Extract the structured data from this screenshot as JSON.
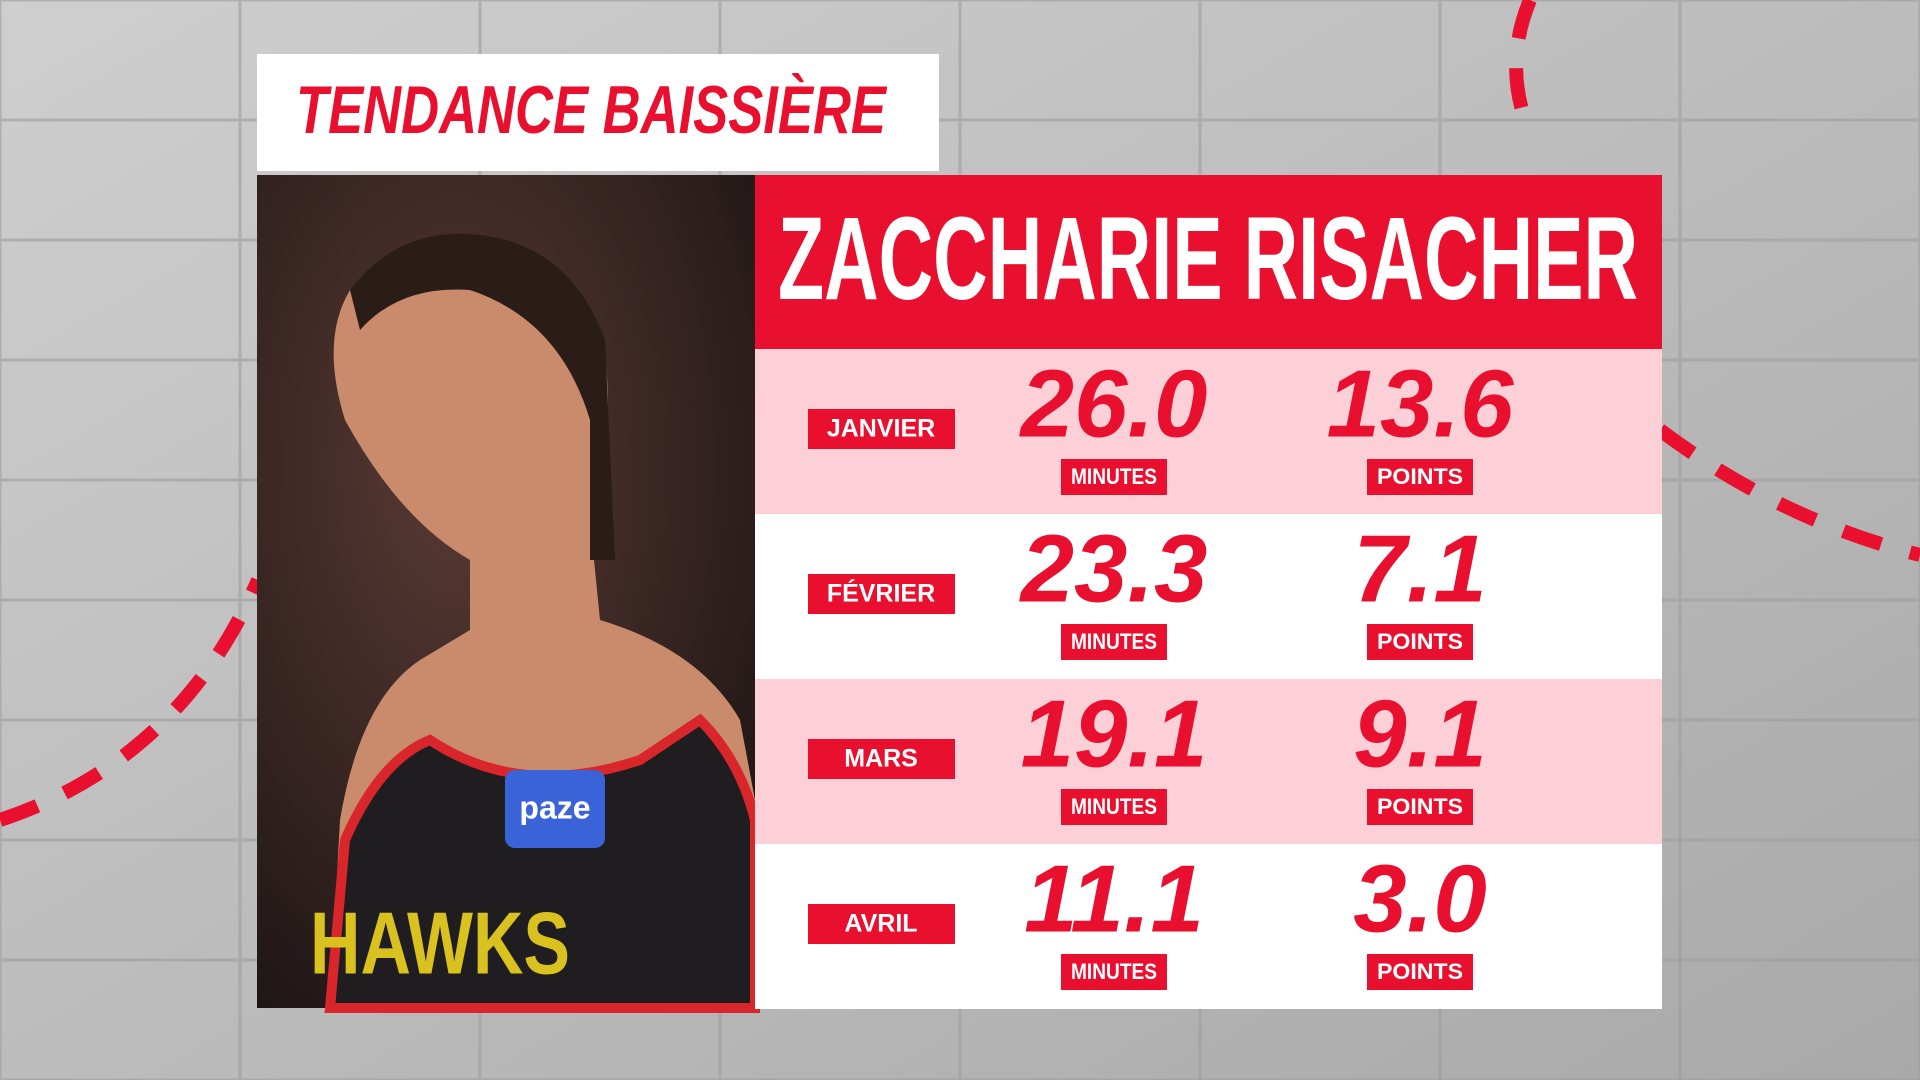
{
  "header": {
    "title": "TENDANCE BAISSIÈRE",
    "player": "ZACCHARIE RISACHER"
  },
  "table": {
    "rows": [
      {
        "month": "JANVIER",
        "minutes": "26.0",
        "minutes_label": "MINUTES",
        "points": "13.6",
        "points_label": "POINTS"
      },
      {
        "month": "FÉVRIER",
        "minutes": "23.3",
        "minutes_label": "MINUTES",
        "points": "7.1",
        "points_label": "POINTS"
      },
      {
        "month": "MARS",
        "minutes": "19.1",
        "minutes_label": "MINUTES",
        "points": "9.1",
        "points_label": "POINTS"
      },
      {
        "month": "AVRIL",
        "minutes": "11.1",
        "minutes_label": "MINUTES",
        "points": "3.0",
        "points_label": "POINTS"
      }
    ]
  },
  "photo": {
    "jersey_sponsor": "paze",
    "jersey_text": "HAWKS"
  }
}
